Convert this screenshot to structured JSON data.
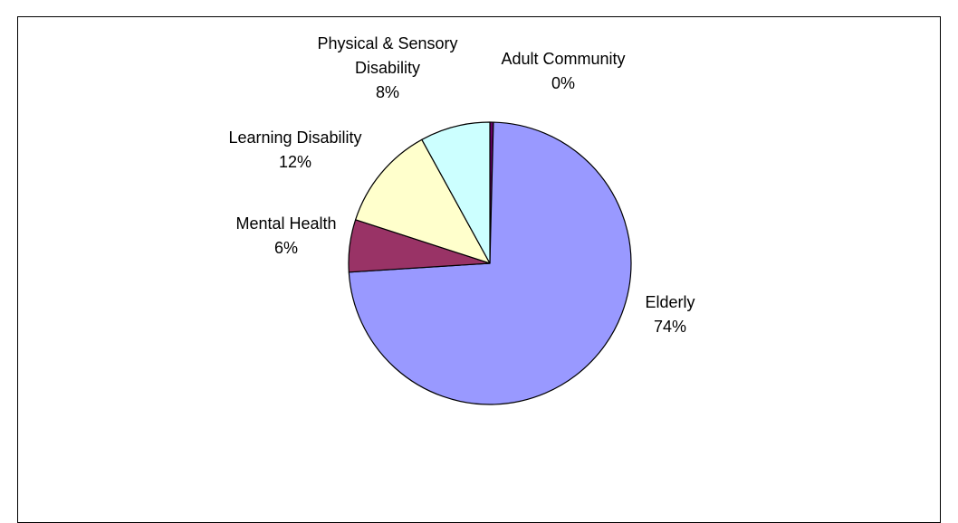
{
  "chart_data": {
    "type": "pie",
    "title": "",
    "start_angle_deg": 0,
    "direction": "clockwise",
    "slices": [
      {
        "label": [
          "Adult Community"
        ],
        "percent_label": "0%",
        "value": 0.4,
        "color": "#660066"
      },
      {
        "label": [
          "Elderly"
        ],
        "percent_label": "74%",
        "value": 73.6,
        "color": "#9999ff"
      },
      {
        "label": [
          "Mental Health"
        ],
        "percent_label": "6%",
        "value": 6.0,
        "color": "#993366"
      },
      {
        "label": [
          "Learning Disability"
        ],
        "percent_label": "12%",
        "value": 12.0,
        "color": "#ffffcc"
      },
      {
        "label": [
          "Physical & Sensory",
          "Disability"
        ],
        "percent_label": "8%",
        "value": 8.0,
        "color": "#ccffff"
      }
    ]
  }
}
